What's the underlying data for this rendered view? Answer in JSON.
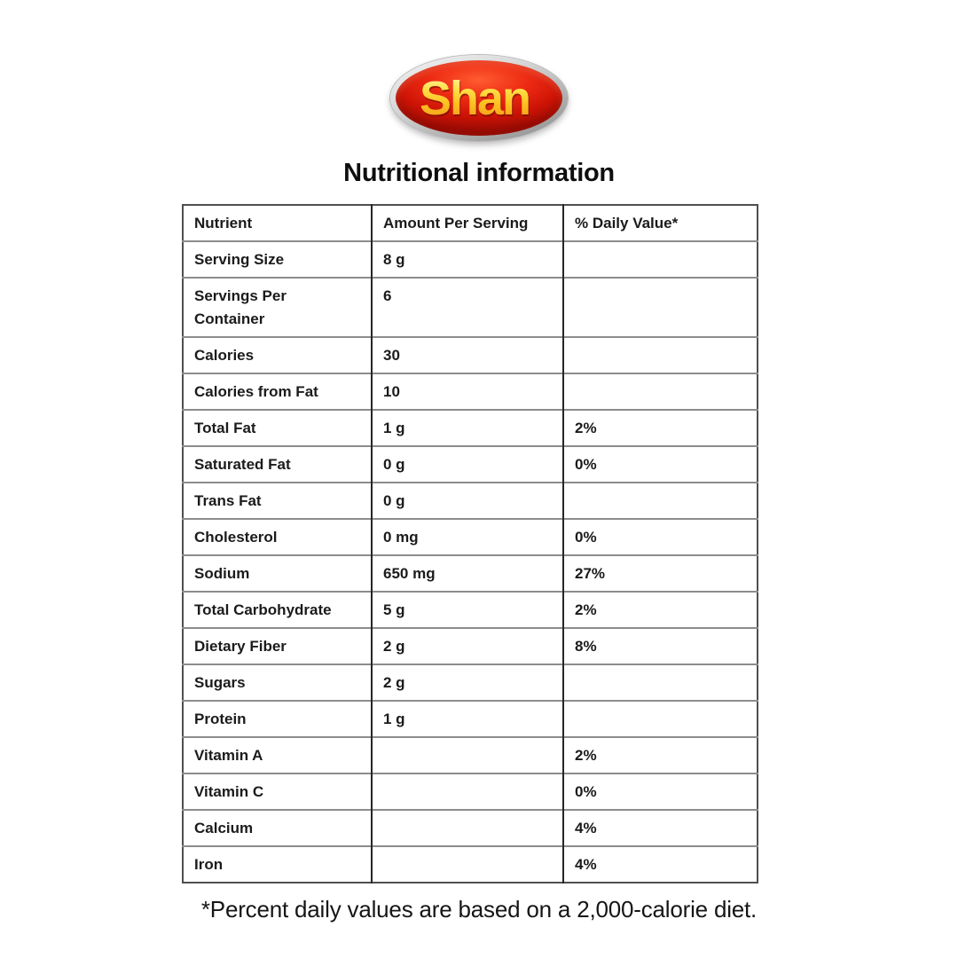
{
  "brand": {
    "name": "Shan",
    "registered_mark": "®"
  },
  "page": {
    "title": "Nutritional information",
    "footnote": "*Percent daily values are based on a 2,000-calorie diet."
  },
  "colors": {
    "logo_red": "#d6190b",
    "logo_yellow": "#ffd938",
    "logo_rim_silver": "#c4c4c4",
    "table_outer_border": "#4f4f4f",
    "table_row_rule": "#8c8c8c",
    "table_column_rule": "#262626",
    "text": "#1b1b1b"
  },
  "table": {
    "headers": [
      "Nutrient",
      "Amount Per Serving",
      "% Daily Value*"
    ],
    "rows": [
      {
        "nutrient": "Serving Size",
        "amount": "8 g",
        "daily_value": ""
      },
      {
        "nutrient": "Servings Per Container",
        "amount": "6",
        "daily_value": ""
      },
      {
        "nutrient": "Calories",
        "amount": "30",
        "daily_value": ""
      },
      {
        "nutrient": "Calories from Fat",
        "amount": "10",
        "daily_value": ""
      },
      {
        "nutrient": "Total Fat",
        "amount": "1 g",
        "daily_value": "2%"
      },
      {
        "nutrient": "Saturated Fat",
        "amount": "0 g",
        "daily_value": "0%"
      },
      {
        "nutrient": "Trans Fat",
        "amount": "0 g",
        "daily_value": ""
      },
      {
        "nutrient": "Cholesterol",
        "amount": "0 mg",
        "daily_value": "0%"
      },
      {
        "nutrient": "Sodium",
        "amount": "650 mg",
        "daily_value": "27%"
      },
      {
        "nutrient": "Total Carbohydrate",
        "amount": "5 g",
        "daily_value": "2%"
      },
      {
        "nutrient": "Dietary Fiber",
        "amount": "2 g",
        "daily_value": "8%"
      },
      {
        "nutrient": "Sugars",
        "amount": "2 g",
        "daily_value": ""
      },
      {
        "nutrient": "Protein",
        "amount": "1 g",
        "daily_value": ""
      },
      {
        "nutrient": "Vitamin A",
        "amount": "",
        "daily_value": "2%"
      },
      {
        "nutrient": "Vitamin C",
        "amount": "",
        "daily_value": "0%"
      },
      {
        "nutrient": "Calcium",
        "amount": "",
        "daily_value": "4%"
      },
      {
        "nutrient": "Iron",
        "amount": "",
        "daily_value": "4%"
      }
    ]
  }
}
